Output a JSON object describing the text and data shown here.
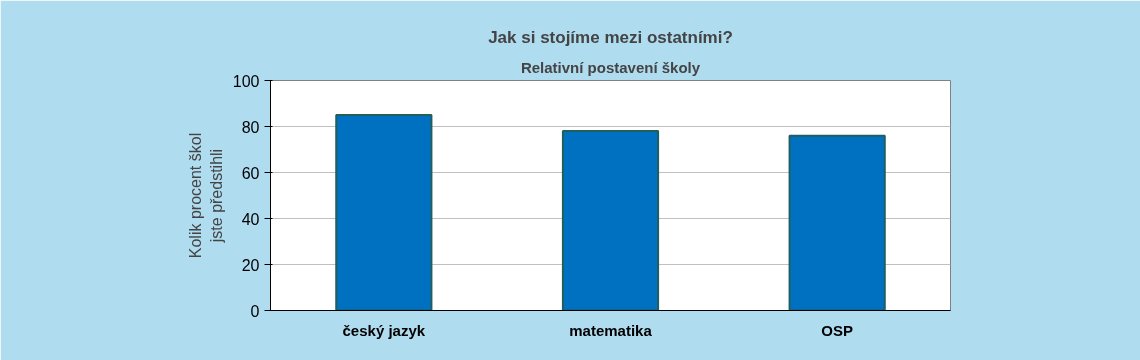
{
  "chart_data": {
    "type": "bar",
    "title": "Jak si stojíme mezi ostatními?",
    "subtitle": "Relativní postavení školy",
    "ylabel": "Kolik procent škol\njste předstihli",
    "categories": [
      "český jazyk",
      "matematika",
      "OSP"
    ],
    "values": [
      85,
      78,
      76
    ],
    "color": "#0070c0",
    "ylim": [
      0,
      100
    ],
    "yticks": [
      0,
      20,
      40,
      60,
      80,
      100
    ],
    "grid": "y"
  }
}
